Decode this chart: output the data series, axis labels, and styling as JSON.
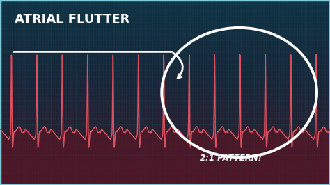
{
  "title": "ATRIAL FLUTTER",
  "pattern_label": "2:1 PATTERN!",
  "bg_color_top": "#0e3344",
  "bg_color_mid": "#2a2035",
  "bg_color_bottom": "#3a1a2a",
  "grid_color": "#1d4d5e",
  "grid_color2": "#163a48",
  "ecg_color": "#d95060",
  "ecg_fill_color": "#5a1525",
  "border_color": "#7ac8d8",
  "text_color": "#ffffff",
  "figsize": [
    4.74,
    2.66
  ],
  "dpi": 100
}
